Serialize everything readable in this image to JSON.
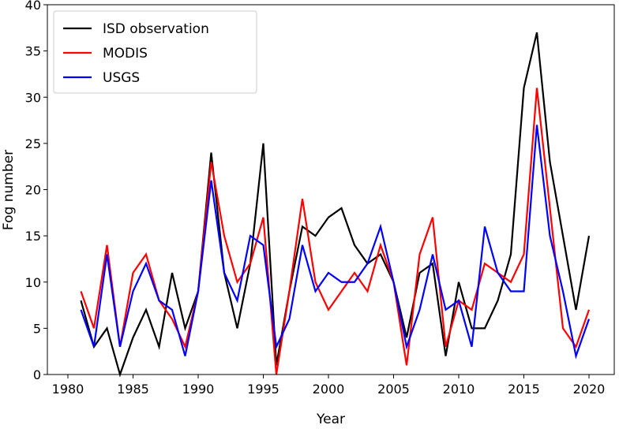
{
  "chart_data": {
    "type": "line",
    "xlabel": "Year",
    "ylabel": "Fog number",
    "xlim": [
      1978.4,
      2022
    ],
    "ylim": [
      0,
      40
    ],
    "xticks": [
      1980,
      1985,
      1990,
      1995,
      2000,
      2005,
      2010,
      2015,
      2020
    ],
    "yticks": [
      0,
      5,
      10,
      15,
      20,
      25,
      30,
      35,
      40
    ],
    "grid": false,
    "legend_position": "top-left",
    "x": [
      1981,
      1982,
      1983,
      1984,
      1985,
      1986,
      1987,
      1988,
      1989,
      1990,
      1991,
      1992,
      1993,
      1994,
      1995,
      1996,
      1997,
      1998,
      1999,
      2000,
      2001,
      2002,
      2003,
      2004,
      2005,
      2006,
      2007,
      2008,
      2009,
      2010,
      2011,
      2012,
      2013,
      2014,
      2015,
      2016,
      2017,
      2018,
      2019,
      2020
    ],
    "series": [
      {
        "name": "ISD observation",
        "color": "#000000",
        "values": [
          8,
          3,
          5,
          0,
          4,
          7,
          3,
          11,
          5,
          9,
          24,
          11,
          5,
          12,
          25,
          1,
          9,
          16,
          15,
          17,
          18,
          14,
          12,
          13,
          10,
          4,
          11,
          12,
          2,
          10,
          5,
          5,
          8,
          13,
          31,
          37,
          23,
          15,
          7,
          15
        ]
      },
      {
        "name": "MODIS",
        "color": "#ff0000",
        "values": [
          9,
          5,
          14,
          3,
          11,
          13,
          8,
          6,
          3,
          9,
          23,
          15,
          10,
          12,
          17,
          0,
          9,
          19,
          10,
          7,
          9,
          11,
          9,
          14,
          10,
          1,
          13,
          17,
          3,
          8,
          7,
          12,
          11,
          10,
          13,
          31,
          18,
          5,
          3,
          7
        ]
      },
      {
        "name": "USGS",
        "color": "#0000ff",
        "values": [
          7,
          3,
          13,
          3,
          9,
          12,
          8,
          7,
          2,
          9,
          21,
          11,
          8,
          15,
          14,
          3,
          6,
          14,
          9,
          11,
          10,
          10,
          12,
          16,
          10,
          3,
          7,
          13,
          7,
          8,
          3,
          16,
          11,
          9,
          9,
          27,
          15,
          9,
          2,
          6
        ]
      }
    ]
  }
}
